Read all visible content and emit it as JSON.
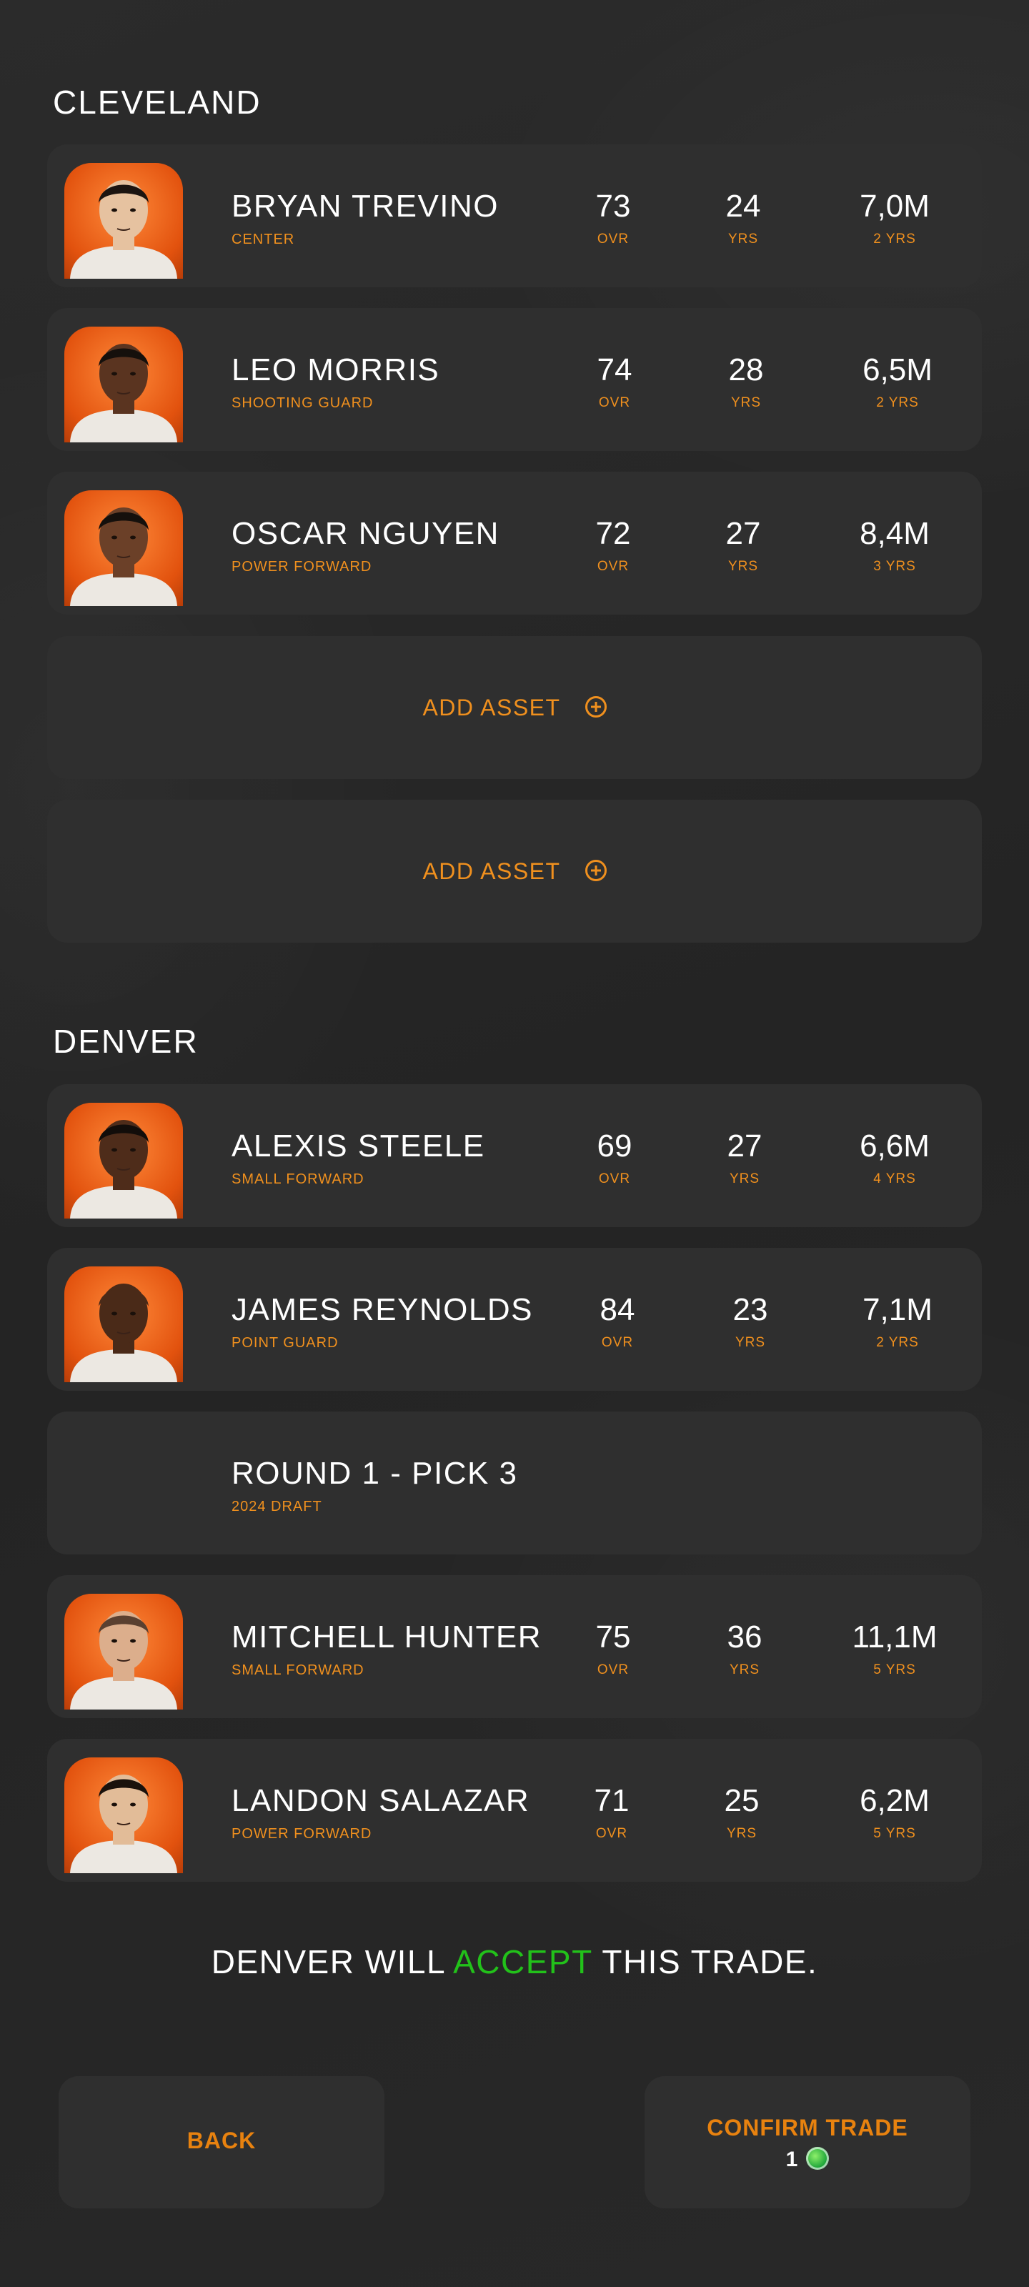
{
  "teams": [
    {
      "name": "CLEVELAND",
      "assets": [
        {
          "name": "BRYAN TREVINO",
          "position": "CENTER",
          "ovr": "73",
          "ovr_label": "OVR",
          "age": "24",
          "age_label": "YRS",
          "salary": "7,0M",
          "contract": "2 YRS",
          "skin": "#e6c2a0",
          "hair": "#1c1410"
        },
        {
          "name": "LEO MORRIS",
          "position": "SHOOTING GUARD",
          "ovr": "74",
          "ovr_label": "OVR",
          "age": "28",
          "age_label": "YRS",
          "salary": "6,5M",
          "contract": "2 YRS",
          "skin": "#5a3420",
          "hair": "#15100c"
        },
        {
          "name": "OSCAR NGUYEN",
          "position": "POWER FORWARD",
          "ovr": "72",
          "ovr_label": "OVR",
          "age": "27",
          "age_label": "YRS",
          "salary": "8,4M",
          "contract": "3 YRS",
          "skin": "#6b4028",
          "hair": "#15100c"
        }
      ],
      "add_slots": [
        "ADD ASSET",
        "ADD ASSET"
      ]
    },
    {
      "name": "DENVER",
      "assets": [
        {
          "name": "ALEXIS STEELE",
          "position": "SMALL FORWARD",
          "ovr": "69",
          "ovr_label": "OVR",
          "age": "27",
          "age_label": "YRS",
          "salary": "6,6M",
          "contract": "4 YRS",
          "skin": "#4e2c1a",
          "hair": "#120d0a"
        },
        {
          "name": "JAMES REYNOLDS",
          "position": "POINT GUARD",
          "ovr": "84",
          "ovr_label": "OVR",
          "age": "23",
          "age_label": "YRS",
          "salary": "7,1M",
          "contract": "2 YRS",
          "skin": "#4a2a18",
          "hair": "#4a2a18"
        },
        {
          "name": "ROUND 1 - PICK 3",
          "position": "2024 DRAFT"
        },
        {
          "name": "MITCHELL HUNTER",
          "position": "SMALL FORWARD",
          "ovr": "75",
          "ovr_label": "OVR",
          "age": "36",
          "age_label": "YRS",
          "salary": "11,1M",
          "contract": "5 YRS",
          "skin": "#dcae8c",
          "hair": "#5a4030"
        },
        {
          "name": "LANDON SALAZAR",
          "position": "POWER FORWARD",
          "ovr": "71",
          "ovr_label": "OVR",
          "age": "25",
          "age_label": "YRS",
          "salary": "6,2M",
          "contract": "5 YRS",
          "skin": "#e2bc98",
          "hair": "#1a120c"
        }
      ]
    }
  ],
  "verdict": {
    "prefix": "DENVER WILL ",
    "highlight": "ACCEPT",
    "suffix": " THIS TRADE.",
    "highlight_color": "#22c11a"
  },
  "buttons": {
    "back": "BACK",
    "confirm": "CONFIRM TRADE",
    "confirm_cost": "1",
    "cost_icon": "green-coin-icon"
  },
  "colors": {
    "background": "#262626",
    "card": "#2f2f2f",
    "accent": "#f0901e",
    "button_text": "#e8820f",
    "portrait_bg": "#e2520e"
  }
}
